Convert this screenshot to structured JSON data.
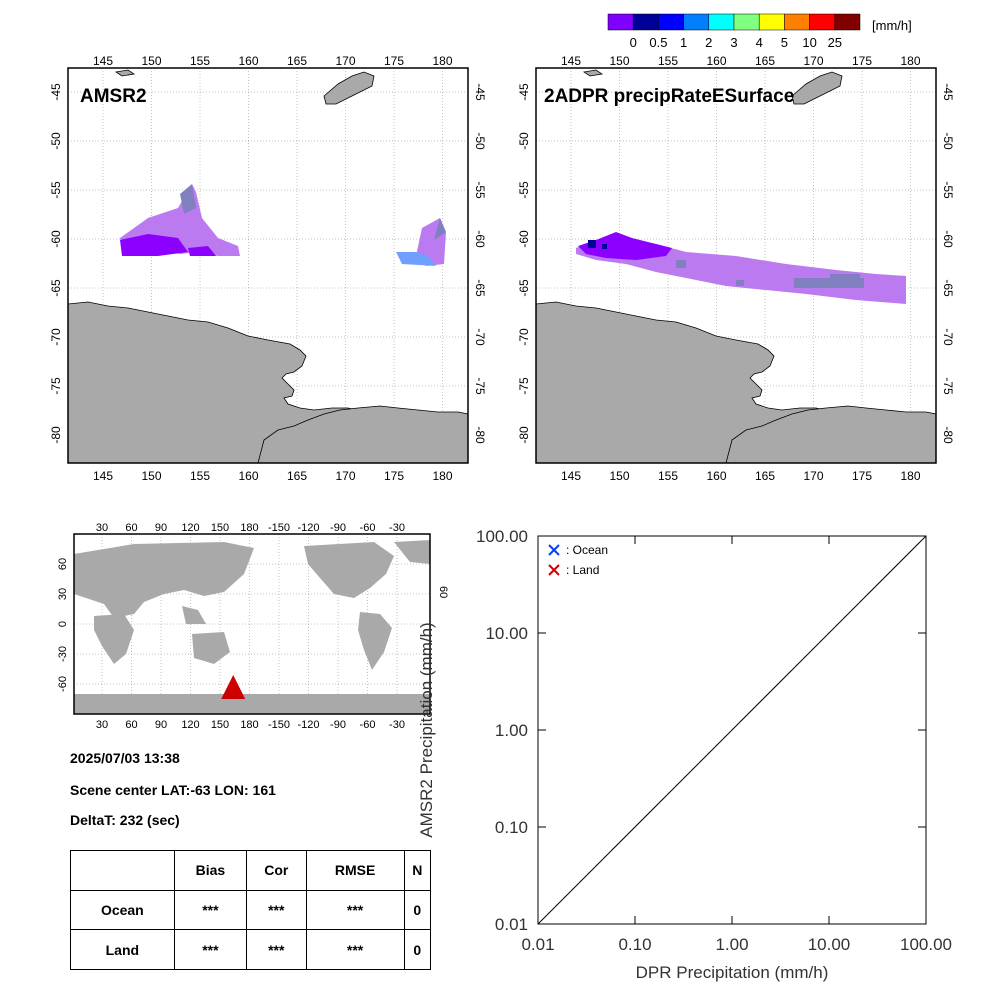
{
  "colorbar": {
    "colors": [
      "#7f00ff",
      "#000099",
      "#0000ff",
      "#0080ff",
      "#00ffff",
      "#80ff80",
      "#ffff00",
      "#ff8000",
      "#ff0000",
      "#800000"
    ],
    "labels": [
      "0",
      "0.5",
      "1",
      "2",
      "3",
      "4",
      "5",
      "10",
      "25"
    ],
    "unit": "[mm/h]"
  },
  "map_axes": {
    "lon_labels": [
      "145",
      "150",
      "155",
      "160",
      "165",
      "170",
      "175",
      "180"
    ],
    "lat_labels": [
      "-45",
      "-50",
      "-55",
      "-60",
      "-65",
      "-70",
      "-75",
      "-80"
    ]
  },
  "maps": [
    {
      "title": "AMSR2"
    },
    {
      "title": "2ADPR precipRateESurface"
    }
  ],
  "globe": {
    "lon_labels": [
      "30",
      "60",
      "90",
      "120",
      "150",
      "180",
      "-150",
      "-120",
      "-90",
      "-60",
      "-30"
    ],
    "lat_labels": [
      "60",
      "30",
      "0",
      "-30",
      "-60"
    ],
    "right_label": "60",
    "marker_lat": -63,
    "marker_lon": 161
  },
  "info": {
    "datetime": "2025/07/03 13:38",
    "scene_center": "Scene center LAT:-63   LON: 161",
    "delta_t": "DeltaT:  232 (sec)"
  },
  "stats_table": {
    "headers": [
      "",
      "Bias",
      "Cor",
      "RMSE",
      "N"
    ],
    "rows": [
      {
        "label": "Ocean",
        "bias": "***",
        "cor": "***",
        "rmse": "***",
        "n": "0"
      },
      {
        "label": "Land",
        "bias": "***",
        "cor": "***",
        "rmse": "***",
        "n": "0"
      }
    ]
  },
  "chart_data": {
    "type": "scatter",
    "x_scale": "log",
    "y_scale": "log",
    "xlim": [
      0.01,
      100
    ],
    "ylim": [
      0.01,
      100
    ],
    "xticks": [
      "0.01",
      "0.10",
      "1.00",
      "10.00",
      "100.00"
    ],
    "yticks": [
      "0.01",
      "0.10",
      "1.00",
      "10.00",
      "100.00"
    ],
    "xlabel": "DPR Precipitation (mm/h)",
    "ylabel": "AMSR2 Precipitation (mm/h)",
    "reference_line": "1:1",
    "legend": [
      {
        "marker": "x",
        "color": "#0040ff",
        "label": ": Ocean"
      },
      {
        "marker": "x",
        "color": "#cc0000",
        "label": ": Land"
      }
    ],
    "legend_placement": "top-left",
    "series": [
      {
        "name": ": Ocean",
        "points": []
      },
      {
        "name": ": Land",
        "points": []
      }
    ]
  }
}
